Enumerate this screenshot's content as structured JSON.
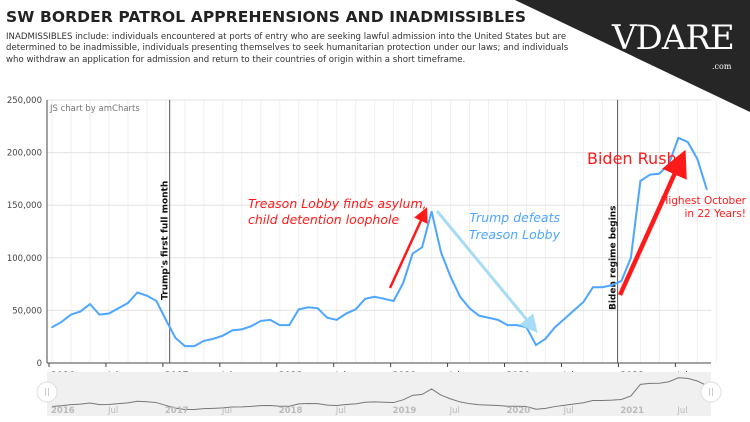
{
  "header": {
    "title": "SW BORDER PATROL APPREHENSIONS AND INADMISSIBLES",
    "description": "INADMISSIBLES include: individuals encountered at ports of entry who are seeking lawful admission into the United States but are determined to be inadmissible, individuals presenting themselves to seek humanitarian protection under our laws; and individuals who withdraw an application for admission and return to their countries of origin within a short timeframe."
  },
  "logo": {
    "text": "VDARE",
    "suffix": ".com"
  },
  "chart_data": {
    "type": "line",
    "title": "SW BORDER PATROL APPREHENSIONS AND INADMISSIBLES",
    "credit": "JS chart by amCharts",
    "xlabel": "",
    "ylabel": "",
    "ylim": [
      0,
      250000
    ],
    "y_ticks": [
      "0",
      "50,000",
      "100,000",
      "150,000",
      "200,000",
      "250,000"
    ],
    "y_tick_values": [
      0,
      50000,
      100000,
      150000,
      200000,
      250000
    ],
    "x_start": "2016-01",
    "x_ticks": [
      {
        "label": "2016",
        "month_index": 0,
        "bold": true
      },
      {
        "label": "Jul",
        "month_index": 6,
        "bold": false
      },
      {
        "label": "2017",
        "month_index": 12,
        "bold": true
      },
      {
        "label": "Jul",
        "month_index": 18,
        "bold": false
      },
      {
        "label": "2018",
        "month_index": 24,
        "bold": true
      },
      {
        "label": "Jul",
        "month_index": 30,
        "bold": false
      },
      {
        "label": "2019",
        "month_index": 36,
        "bold": true
      },
      {
        "label": "Jul",
        "month_index": 42,
        "bold": false
      },
      {
        "label": "2020",
        "month_index": 48,
        "bold": true
      },
      {
        "label": "Jul",
        "month_index": 54,
        "bold": false
      },
      {
        "label": "2021",
        "month_index": 60,
        "bold": true
      },
      {
        "label": "Jul",
        "month_index": 66,
        "bold": false
      }
    ],
    "grid": true,
    "series": [
      {
        "name": "Apprehensions and Inadmissibles",
        "color": "#4da6ff",
        "values": [
          34000,
          39000,
          46000,
          49000,
          56000,
          46000,
          47000,
          52000,
          57000,
          67000,
          64000,
          59000,
          41000,
          24000,
          16000,
          16000,
          21000,
          23000,
          26000,
          31000,
          32000,
          35000,
          40000,
          41000,
          36000,
          36000,
          51000,
          53000,
          52000,
          43000,
          41000,
          47000,
          51000,
          61000,
          63000,
          61000,
          59000,
          76000,
          104000,
          110000,
          144000,
          105000,
          82000,
          63000,
          52000,
          45000,
          43000,
          41000,
          36000,
          36000,
          34000,
          17000,
          23000,
          34000,
          42000,
          50000,
          58000,
          72000,
          72000,
          74000,
          78000,
          100000,
          173000,
          179000,
          180000,
          189000,
          214000,
          210000,
          194000,
          165000
        ]
      }
    ],
    "events": [
      {
        "label": "Trump's first full month",
        "month_index": 12.4
      },
      {
        "label": "Biden regime begins",
        "month_index": 59.6
      }
    ],
    "annotations": {
      "treason_line1": "Treason Lobby finds asylum,",
      "treason_line2": "child detention loophole",
      "defeats_line1": "Trump defeats",
      "defeats_line2": "Treason Lobby",
      "biden_rush": "Biden Rush",
      "highest_line1": "Highest October",
      "highest_line2": "in 22 Years!"
    },
    "colors": {
      "red": "#ff1a1a",
      "lightblue": "#a6dcf5",
      "line": "#4da6ff"
    }
  }
}
